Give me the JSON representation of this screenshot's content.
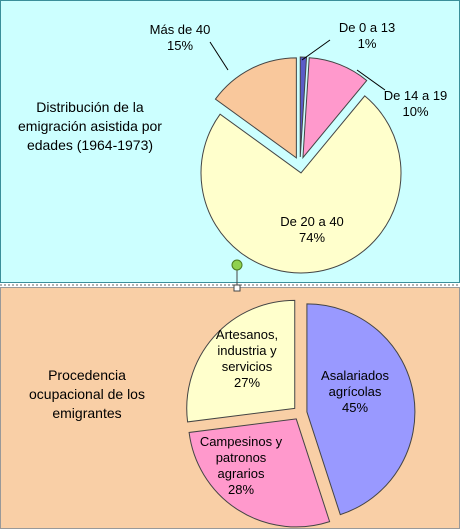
{
  "chart_data": [
    {
      "type": "pie",
      "title": "Distribución de la emigración asistida por edades (1964-1973)",
      "categories": [
        "De 0 a 13",
        "De 14 a 19",
        "De 20 a 40",
        "Más de 40"
      ],
      "values": [
        1,
        10,
        74,
        15
      ],
      "value_labels": [
        "1%",
        "10%",
        "74%",
        "15%"
      ],
      "colors": [
        "#5b5bc8",
        "#ff99cc",
        "#ffffcc",
        "#f9c89c"
      ]
    },
    {
      "type": "pie",
      "title": "Procedencia ocupacional de los emigrantes",
      "categories": [
        "Asalariados agrícolas",
        "Campesinos y patronos agrarios",
        "Artesanos, industria y servicios"
      ],
      "values": [
        45,
        28,
        27
      ],
      "value_labels": [
        "45%",
        "28%",
        "27%"
      ],
      "colors": [
        "#9999ff",
        "#ff99cc",
        "#ffffcc"
      ]
    }
  ]
}
